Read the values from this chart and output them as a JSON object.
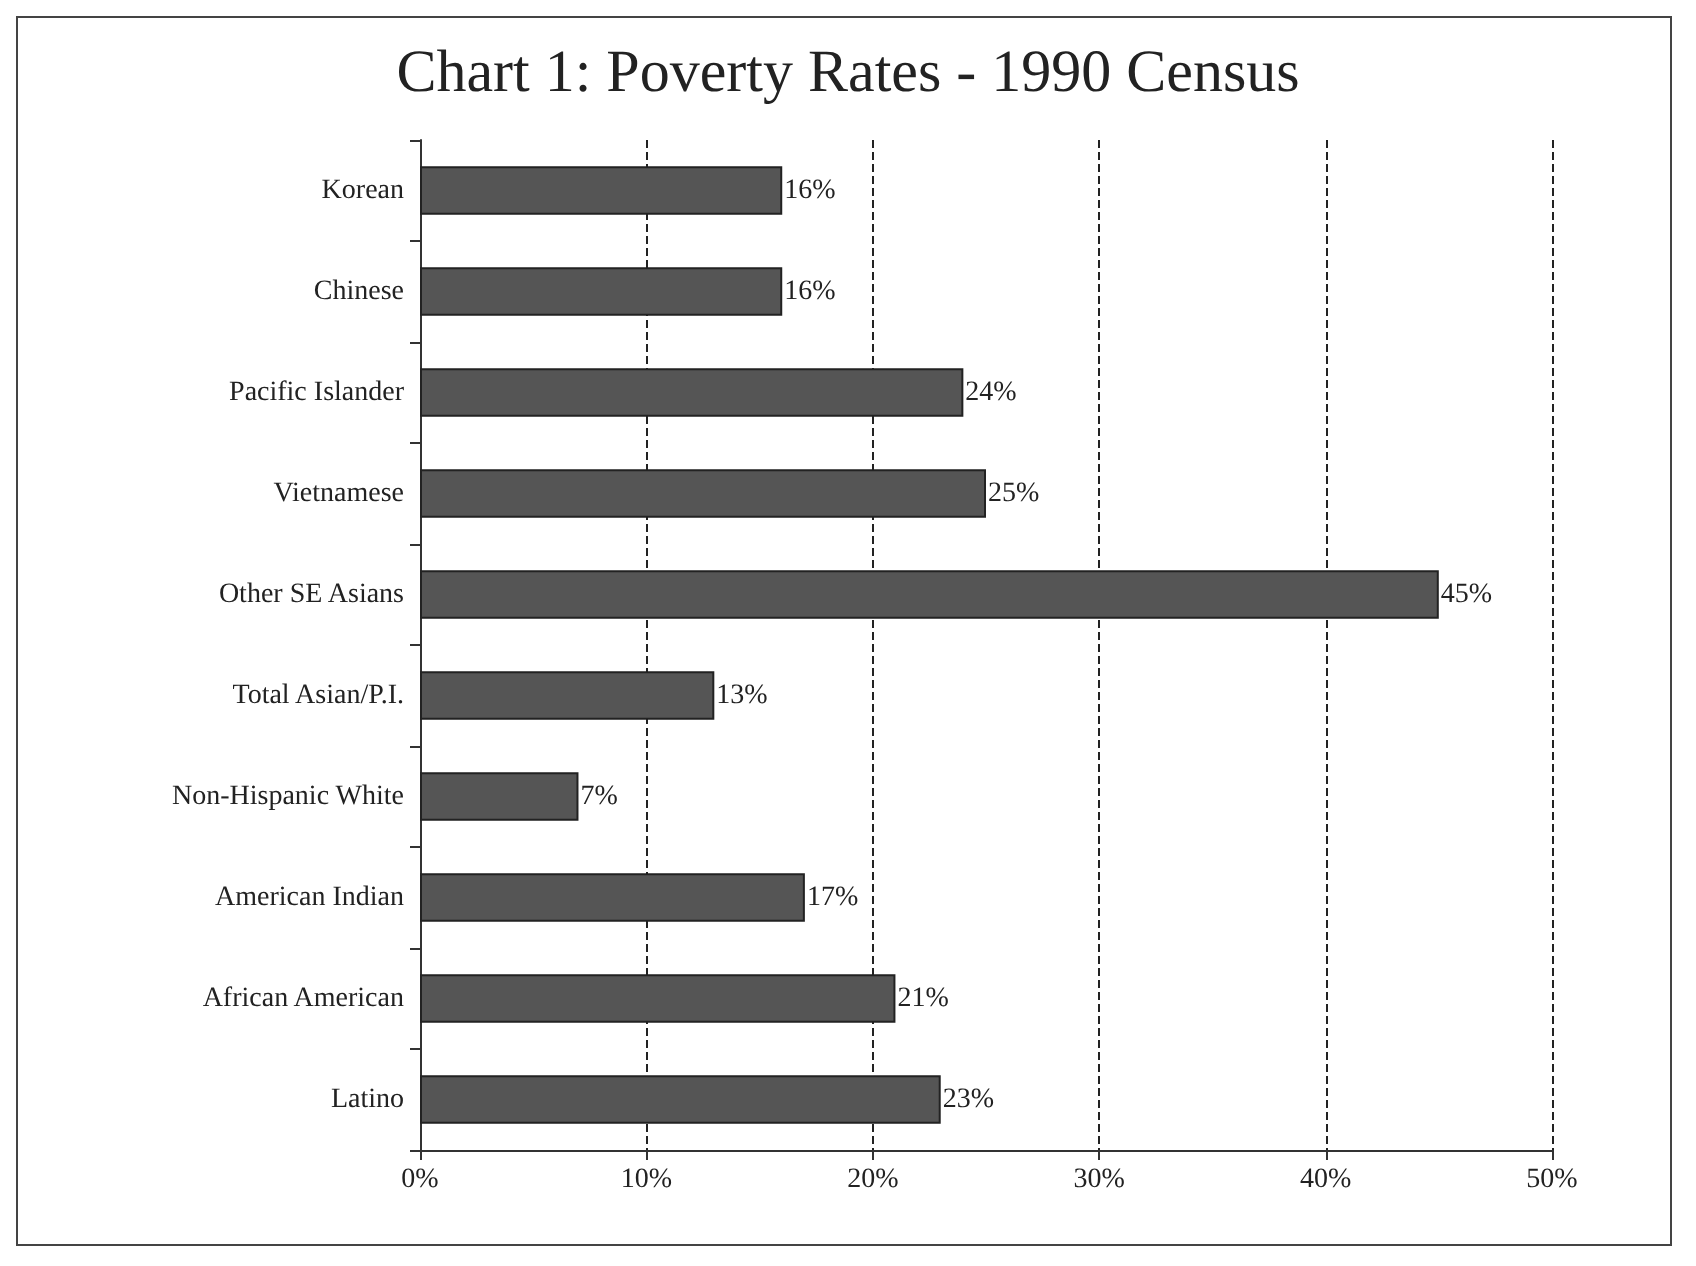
{
  "chart_data": {
    "type": "bar",
    "orientation": "horizontal",
    "title": "Chart 1: Poverty Rates - 1990 Census",
    "categories": [
      "Korean",
      "Chinese",
      "Pacific Islander",
      "Vietnamese",
      "Other SE Asians",
      "Total Asian/P.I.",
      "Non-Hispanic White",
      "American Indian",
      "African American",
      "Latino"
    ],
    "values": [
      16,
      16,
      24,
      25,
      45,
      13,
      7,
      17,
      21,
      23
    ],
    "value_labels": [
      "16%",
      "16%",
      "24%",
      "25%",
      "45%",
      "13%",
      "7%",
      "17%",
      "21%",
      "23%"
    ],
    "color": "#555555",
    "xlim": [
      0,
      50
    ],
    "xticks": [
      {
        "value": 0,
        "label": "0%"
      },
      {
        "value": 10,
        "label": "10%"
      },
      {
        "value": 20,
        "label": "20%"
      },
      {
        "value": 30,
        "label": "30%"
      },
      {
        "value": 40,
        "label": "40%"
      },
      {
        "value": 50,
        "label": "50%"
      }
    ],
    "grid": "x",
    "line_style": "dashed"
  }
}
